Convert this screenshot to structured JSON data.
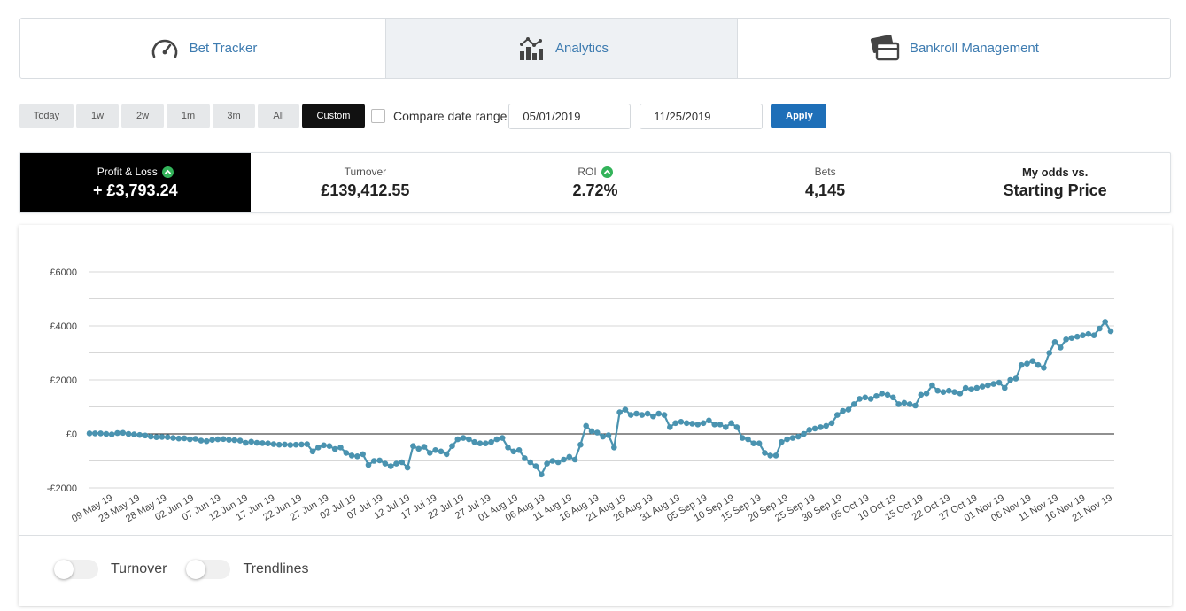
{
  "tabs": [
    {
      "label": "Bet Tracker",
      "icon": "speedometer-icon"
    },
    {
      "label": "Analytics",
      "icon": "bar-chart-icon"
    },
    {
      "label": "Bankroll Management",
      "icon": "credit-card-icon"
    }
  ],
  "range": {
    "buttons": [
      "Today",
      "1w",
      "2w",
      "1m",
      "3m",
      "All",
      "Custom"
    ],
    "active": "Custom",
    "compare_label": "Compare date range",
    "start_date": "05/01/2019",
    "end_date": "11/25/2019",
    "apply_label": "Apply"
  },
  "stats": {
    "pl_label": "Profit & Loss",
    "pl_value": "+ £3,793.24",
    "turnover_label": "Turnover",
    "turnover_value": "£139,412.55",
    "roi_label": "ROI",
    "roi_value": "2.72%",
    "bets_label": "Bets",
    "bets_value": "4,145",
    "odds_label": "My odds vs.",
    "odds_value": "Starting Price"
  },
  "toggles": {
    "turnover_label": "Turnover",
    "trendlines_label": "Trendlines"
  },
  "colors": {
    "line": "#4a93b0",
    "active_bg": "#000000",
    "apply": "#1e6fb8",
    "up": "#33b35a"
  },
  "chart_data": {
    "type": "line",
    "title": "",
    "xlabel": "",
    "ylabel": "",
    "ylim": [
      -2000,
      6000
    ],
    "yticks": [
      -2000,
      0,
      2000,
      4000,
      6000
    ],
    "ytick_labels": [
      "-£2000",
      "£0",
      "£2000",
      "£4000",
      "£6000"
    ],
    "grid": true,
    "xtick_labels": [
      "09 May 19",
      "23 May 19",
      "28 May 19",
      "02 Jun 19",
      "07 Jun 19",
      "12 Jun 19",
      "17 Jun 19",
      "22 Jun 19",
      "27 Jun 19",
      "02 Jul 19",
      "07 Jul 19",
      "12 Jul 19",
      "17 Jul 19",
      "22 Jul 19",
      "27 Jul 19",
      "01 Aug 19",
      "06 Aug 19",
      "11 Aug 19",
      "16 Aug 19",
      "21 Aug 19",
      "26 Aug 19",
      "31 Aug 19",
      "05 Sep 19",
      "10 Sep 19",
      "15 Sep 19",
      "20 Sep 19",
      "25 Sep 19",
      "30 Sep 19",
      "05 Oct 19",
      "10 Oct 19",
      "15 Oct 19",
      "22 Oct 19",
      "27 Oct 19",
      "01 Nov 19",
      "06 Nov 19",
      "11 Nov 19",
      "16 Nov 19",
      "21 Nov 19"
    ],
    "series": [
      {
        "values": [
          20,
          20,
          20,
          0,
          -20,
          30,
          40,
          0,
          -20,
          -40,
          -60,
          -100,
          -120,
          -110,
          -120,
          -150,
          -170,
          -160,
          -200,
          -180,
          -250,
          -270,
          -220,
          -200,
          -190,
          -220,
          -230,
          -250,
          -330,
          -290,
          -330,
          -340,
          -350,
          -380,
          -400,
          -390,
          -410,
          -400,
          -390,
          -380,
          -650,
          -500,
          -420,
          -450,
          -560,
          -500,
          -700,
          -800,
          -830,
          -750,
          -1150,
          -1000,
          -980,
          -1100,
          -1200,
          -1100,
          -1050,
          -1250,
          -450,
          -550,
          -480,
          -700,
          -600,
          -650,
          -750,
          -450,
          -200,
          -150,
          -200,
          -300,
          -350,
          -350,
          -300,
          -200,
          -150,
          -500,
          -650,
          -600,
          -900,
          -1050,
          -1200,
          -1500,
          -1100,
          -1000,
          -1050,
          -950,
          -850,
          -950,
          -400,
          300,
          100,
          50,
          -100,
          -50,
          -500,
          800,
          900,
          700,
          750,
          700,
          750,
          650,
          750,
          700,
          250,
          400,
          450,
          400,
          380,
          350,
          400,
          500,
          350,
          350,
          250,
          400,
          250,
          -150,
          -200,
          -350,
          -350,
          -700,
          -800,
          -800,
          -300,
          -200,
          -150,
          -100,
          0,
          150,
          200,
          250,
          300,
          400,
          700,
          850,
          900,
          1100,
          1300,
          1350,
          1300,
          1400,
          1500,
          1450,
          1350,
          1100,
          1150,
          1100,
          1050,
          1450,
          1500,
          1800,
          1600,
          1550,
          1600,
          1550,
          1500,
          1700,
          1650,
          1700,
          1750,
          1800,
          1850,
          1900,
          1700,
          2000,
          2050,
          2550,
          2600,
          2700,
          2550,
          2450,
          3000,
          3400,
          3200,
          3500,
          3550,
          3600,
          3650,
          3700,
          3650,
          3900,
          4150,
          3800
        ]
      }
    ]
  }
}
